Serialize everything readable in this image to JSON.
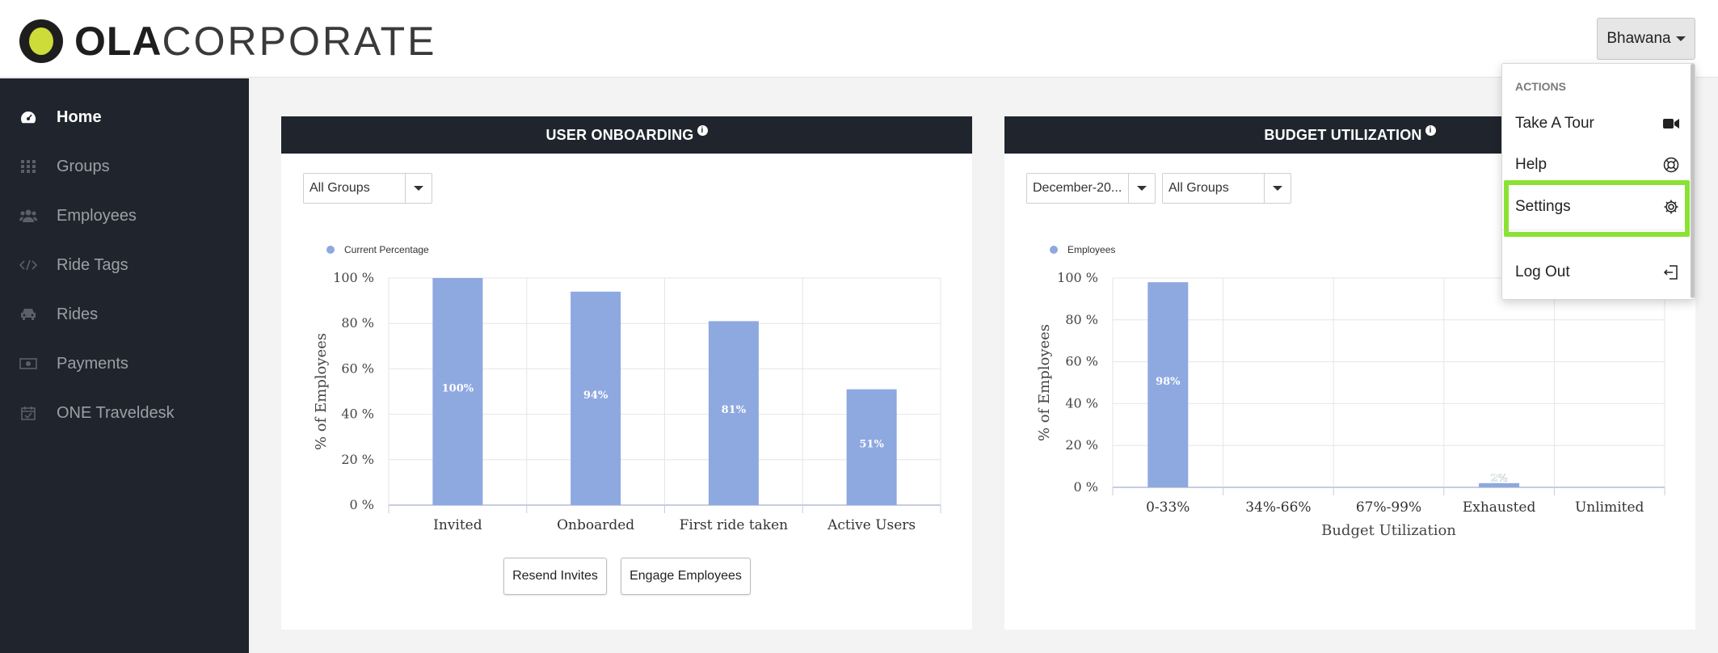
{
  "brand": {
    "bold": "OLA",
    "light": "CORPORATE"
  },
  "user": {
    "name": "Bhawana"
  },
  "sidebar": {
    "items": [
      {
        "label": "Home",
        "icon": "dashboard-icon"
      },
      {
        "label": "Groups",
        "icon": "grid-icon"
      },
      {
        "label": "Employees",
        "icon": "users-icon"
      },
      {
        "label": "Ride Tags",
        "icon": "code-icon"
      },
      {
        "label": "Rides",
        "icon": "car-icon"
      },
      {
        "label": "Payments",
        "icon": "money-icon"
      },
      {
        "label": "ONE Traveldesk",
        "icon": "calendar-check-icon"
      }
    ]
  },
  "onboarding": {
    "title": "USER ONBOARDING",
    "group_select": "All Groups",
    "legend": "Current Percentage",
    "ylabel": "% of Employees",
    "yticks": [
      "100 %",
      "80 %",
      "60 %",
      "40 %",
      "20 %",
      "0 %"
    ],
    "buttons": {
      "resend": "Resend Invites",
      "engage": "Engage Employees"
    }
  },
  "budget": {
    "title": "BUDGET UTILIZATION",
    "month_select": "December-20...",
    "group_select": "All Groups",
    "legend": "Employees",
    "ylabel": "% of Employees",
    "xlabel": "Budget Utilization",
    "yticks": [
      "100 %",
      "80 %",
      "60 %",
      "40 %",
      "20 %",
      "0 %"
    ]
  },
  "menu": {
    "header": "ACTIONS",
    "items": [
      {
        "label": "Take A Tour",
        "icon": "video-camera-icon"
      },
      {
        "label": "Help",
        "icon": "lifebuoy-icon"
      },
      {
        "label": "Settings",
        "icon": "gear-icon"
      },
      {
        "label": "Log Out",
        "icon": "logout-icon"
      }
    ]
  },
  "colors": {
    "bar": "#8ea8e0",
    "dark": "#20252d",
    "highlight": "#8ae234"
  },
  "chart_data": [
    {
      "type": "bar",
      "title": "USER ONBOARDING",
      "categories": [
        "Invited",
        "Onboarded",
        "First ride taken",
        "Active Users"
      ],
      "series": [
        {
          "name": "Current Percentage",
          "values": [
            100,
            94,
            81,
            51
          ]
        }
      ],
      "data_labels": [
        "100%",
        "94%",
        "81%",
        "51%"
      ],
      "xlabel": "",
      "ylabel": "% of Employees",
      "ylim": [
        0,
        100
      ],
      "grid": true,
      "legend": "top-left"
    },
    {
      "type": "bar",
      "title": "BUDGET UTILIZATION",
      "categories": [
        "0-33%",
        "34%-66%",
        "67%-99%",
        "Exhausted",
        "Unlimited"
      ],
      "series": [
        {
          "name": "Employees",
          "values": [
            98,
            0,
            0,
            2,
            0
          ]
        }
      ],
      "data_labels": [
        "98%",
        "",
        "",
        "2%",
        ""
      ],
      "xlabel": "Budget Utilization",
      "ylabel": "% of Employees",
      "ylim": [
        0,
        100
      ],
      "grid": true,
      "legend": "top-left"
    }
  ]
}
